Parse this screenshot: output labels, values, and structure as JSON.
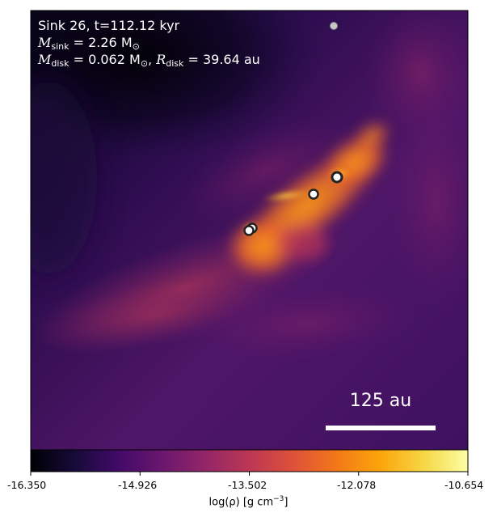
{
  "annotation": {
    "line1": "Sink 26, t=112.12 kyr",
    "msink_symbol": "M",
    "msink_sub": "sink",
    "msink_value": " = 2.26 M",
    "sun_symbol": "⊙",
    "mdisk_symbol": "M",
    "mdisk_sub": "disk",
    "mdisk_value": " = 0.062 M",
    "rdisk_symbol": "R",
    "rdisk_sub": "disk",
    "rdisk_value": " = 39.64 au"
  },
  "scalebar": {
    "label": "125 au"
  },
  "colorbar": {
    "colormap": "inferno",
    "min": -16.35,
    "max": -10.654,
    "tick_labels": [
      "-16.350",
      "-14.926",
      "-13.502",
      "-12.078",
      "-10.654"
    ],
    "label": "log(ρ) [g cm",
    "label_exp": "−3",
    "label_end": "]"
  },
  "sinks": [
    {
      "name": "sink-small-top",
      "kind": "gray"
    },
    {
      "name": "sink-right",
      "kind": "ring"
    },
    {
      "name": "sink-center",
      "kind": "ring"
    },
    {
      "name": "sink-left-a",
      "kind": "ring"
    },
    {
      "name": "sink-left-b",
      "kind": "ring"
    }
  ]
}
